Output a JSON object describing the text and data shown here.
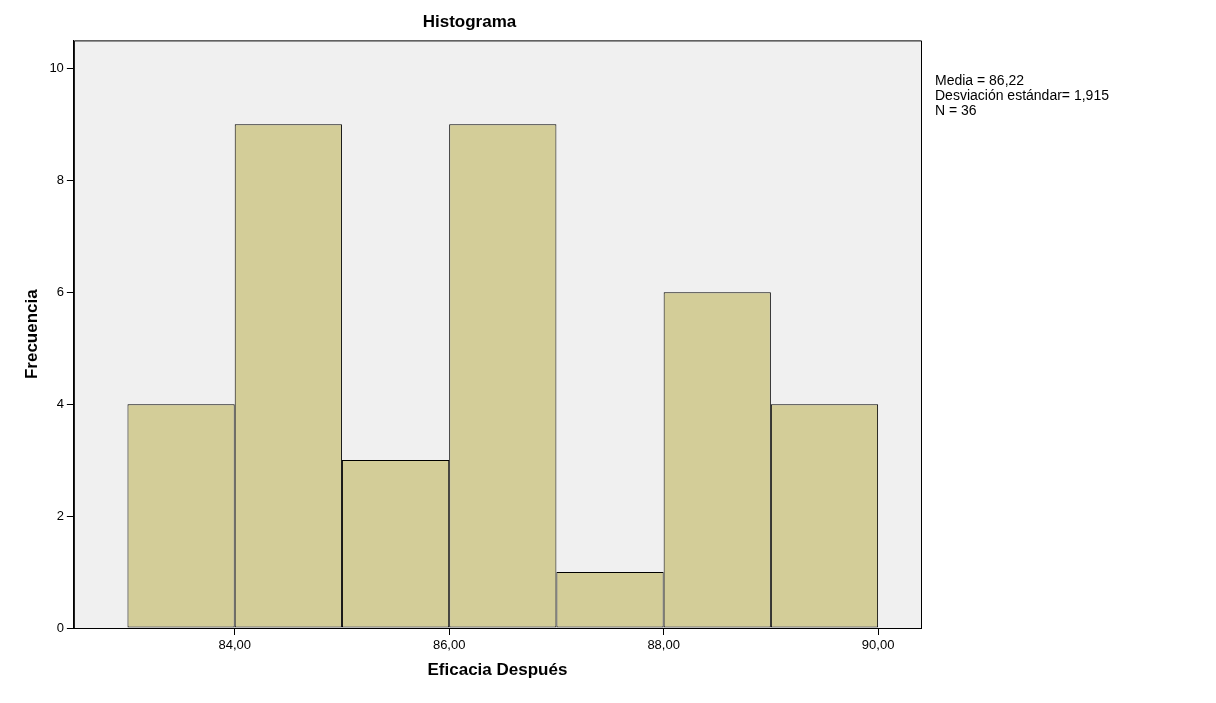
{
  "chart_data": {
    "type": "histogram",
    "title": "Histograma",
    "xlabel": "Eficacia Después",
    "ylabel": "Frecuencia",
    "bins": [
      83,
      84,
      85,
      86,
      87,
      88,
      89,
      90
    ],
    "values": [
      4,
      9,
      3,
      9,
      1,
      6,
      4
    ],
    "color": "#d3cd98",
    "xlim": [
      82.5,
      90.4
    ],
    "xticks": [
      {
        "value": 84,
        "label": "84,00"
      },
      {
        "value": 86,
        "label": "86,00"
      },
      {
        "value": 88,
        "label": "88,00"
      },
      {
        "value": 90,
        "label": "90,00"
      }
    ],
    "ylim": [
      0,
      10.5
    ],
    "yticks": [
      0,
      2,
      4,
      6,
      8,
      10
    ],
    "grid": false,
    "legend": false,
    "annotations": [
      "Media = 86,22",
      "Desviación estándar= 1,915",
      "N = 36"
    ]
  }
}
